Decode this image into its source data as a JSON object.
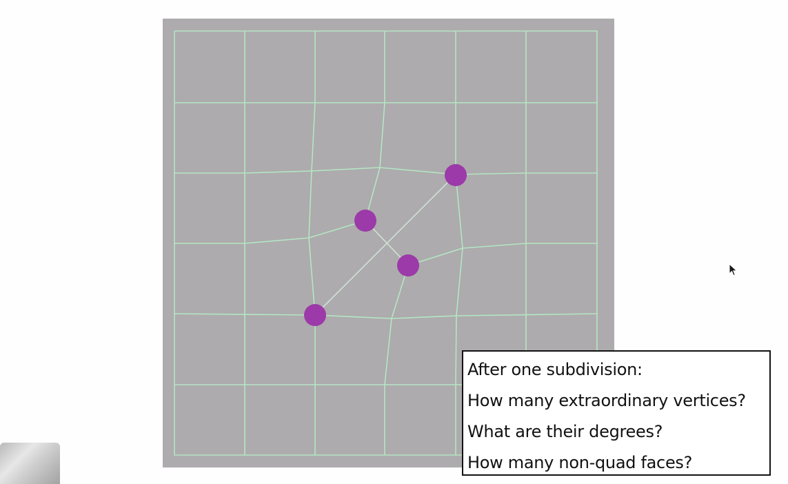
{
  "diagram": {
    "colors": {
      "panel": "#adabad",
      "grid_line": "#b4e6c4",
      "inner_edge": "#cfe3d3",
      "vertex": "#9b3aa8",
      "box_border": "#111111"
    },
    "grid": {
      "rows": 6,
      "cols": 6
    },
    "extraordinary_vertex_count_shown": 4
  },
  "question_box": {
    "lines": [
      "After one subdivision:",
      "How many extraordinary vertices?",
      "What are their degrees?",
      "How many non-quad faces?"
    ]
  },
  "icons": {
    "cursor": "mouse-pointer-icon"
  }
}
